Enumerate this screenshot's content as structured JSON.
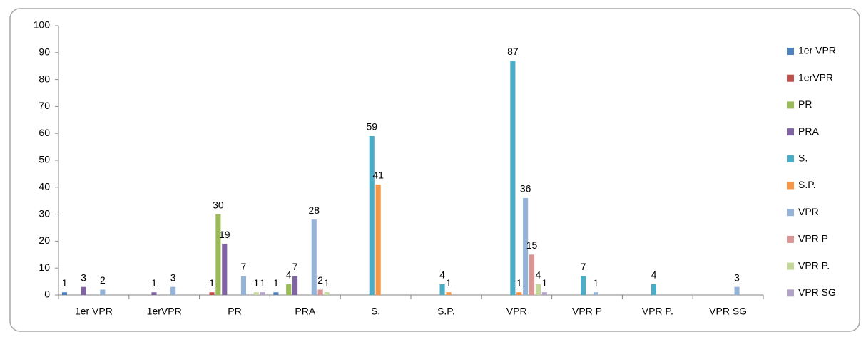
{
  "chart_data": {
    "type": "bar",
    "categories": [
      "1er VPR",
      "1erVPR",
      "PR",
      "PRA",
      "S.",
      "S.P.",
      "VPR",
      "VPR P",
      "VPR P.",
      "VPR SG"
    ],
    "series": [
      {
        "name": "1er VPR",
        "color": "#4f81bd",
        "values": [
          1,
          null,
          null,
          1,
          null,
          null,
          null,
          null,
          null,
          null
        ]
      },
      {
        "name": "1erVPR",
        "color": "#c0504d",
        "values": [
          null,
          null,
          1,
          null,
          null,
          null,
          null,
          null,
          null,
          null
        ]
      },
      {
        "name": "PR",
        "color": "#9bbb59",
        "values": [
          null,
          null,
          30,
          4,
          null,
          null,
          null,
          null,
          null,
          null
        ]
      },
      {
        "name": "PRA",
        "color": "#8064a2",
        "values": [
          3,
          1,
          19,
          7,
          null,
          null,
          null,
          null,
          null,
          null
        ]
      },
      {
        "name": "S.",
        "color": "#4bacc6",
        "values": [
          null,
          null,
          null,
          null,
          59,
          4,
          87,
          7,
          4,
          null
        ]
      },
      {
        "name": "S.P.",
        "color": "#f79646",
        "values": [
          null,
          null,
          null,
          null,
          41,
          1,
          1,
          null,
          null,
          null
        ]
      },
      {
        "name": "VPR",
        "color": "#95b3d7",
        "values": [
          2,
          3,
          7,
          28,
          null,
          null,
          36,
          1,
          null,
          3
        ]
      },
      {
        "name": "VPR P",
        "color": "#d99694",
        "values": [
          null,
          null,
          null,
          2,
          null,
          null,
          15,
          null,
          null,
          null
        ]
      },
      {
        "name": "VPR P.",
        "color": "#c3d69b",
        "values": [
          null,
          null,
          1,
          1,
          null,
          null,
          4,
          null,
          null,
          null
        ]
      },
      {
        "name": "VPR SG",
        "color": "#b3a2c7",
        "values": [
          null,
          null,
          1,
          null,
          null,
          null,
          1,
          null,
          null,
          null
        ]
      }
    ],
    "ylim": [
      0,
      100
    ],
    "yticks": [
      0,
      10,
      20,
      30,
      40,
      50,
      60,
      70,
      80,
      90,
      100
    ],
    "legend": "right"
  }
}
